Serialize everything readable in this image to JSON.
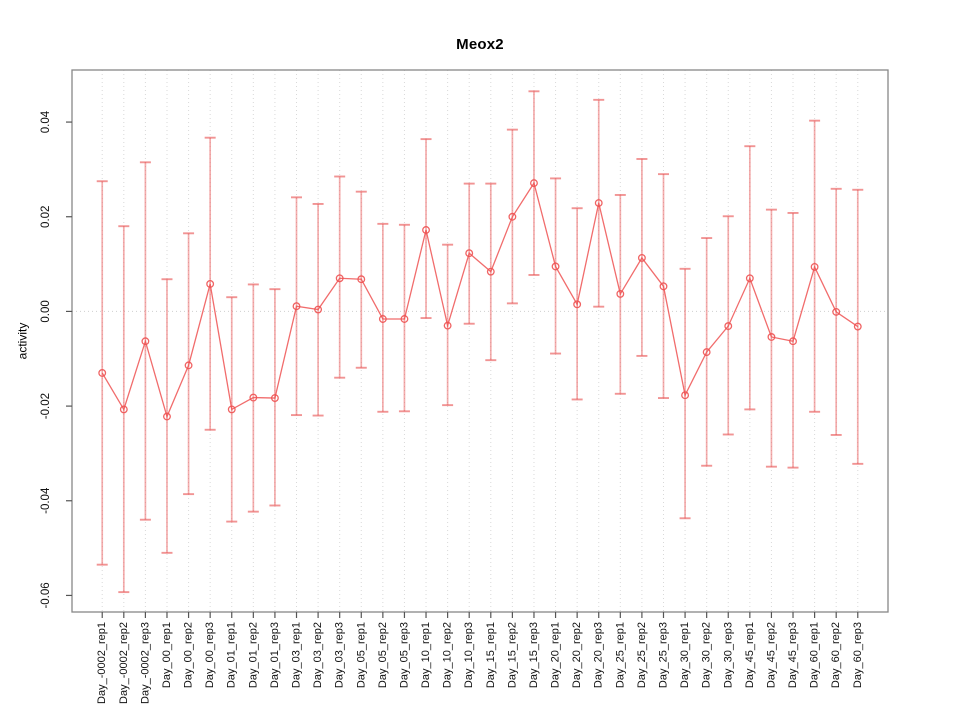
{
  "chart_data": {
    "type": "line",
    "title": "Meox2",
    "xlabel": "",
    "ylabel": "activity",
    "legend_position": "none",
    "grid": "vertical-dotted-per-category-plus-dotted-zero-line",
    "marker": "open-circle",
    "categories": [
      "Day_-0002_rep1",
      "Day_-0002_rep2",
      "Day_-0002_rep3",
      "Day_00_rep1",
      "Day_00_rep2",
      "Day_00_rep3",
      "Day_01_rep1",
      "Day_01_rep2",
      "Day_01_rep3",
      "Day_03_rep1",
      "Day_03_rep2",
      "Day_03_rep3",
      "Day_05_rep1",
      "Day_05_rep2",
      "Day_05_rep3",
      "Day_10_rep1",
      "Day_10_rep2",
      "Day_10_rep3",
      "Day_15_rep1",
      "Day_15_rep2",
      "Day_15_rep3",
      "Day_20_rep1",
      "Day_20_rep2",
      "Day_20_rep3",
      "Day_25_rep1",
      "Day_25_rep2",
      "Day_25_rep3",
      "Day_30_rep1",
      "Day_30_rep2",
      "Day_30_rep3",
      "Day_45_rep1",
      "Day_45_rep2",
      "Day_45_rep3",
      "Day_60_rep1",
      "Day_60_rep2",
      "Day_60_rep3"
    ],
    "series": [
      {
        "name": "activity",
        "values": [
          -0.013,
          -0.0207,
          -0.0063,
          -0.0222,
          -0.0114,
          0.0058,
          -0.0207,
          -0.0182,
          -0.0183,
          0.0011,
          0.0004,
          0.007,
          0.0068,
          -0.0016,
          -0.0016,
          0.0172,
          -0.003,
          0.0123,
          0.0084,
          0.02,
          0.0271,
          0.0095,
          0.0015,
          0.0229,
          0.0037,
          0.0113,
          0.0053,
          -0.0177,
          -0.0086,
          -0.0031,
          0.007,
          -0.0054,
          -0.0063,
          0.0094,
          -0.0001,
          -0.0032
        ],
        "error_low": [
          -0.0535,
          -0.0593,
          -0.044,
          -0.051,
          -0.0386,
          -0.025,
          -0.0444,
          -0.0423,
          -0.041,
          -0.0219,
          -0.022,
          -0.014,
          -0.0119,
          -0.0212,
          -0.0211,
          -0.0014,
          -0.0198,
          -0.0026,
          -0.0103,
          0.0017,
          0.0077,
          -0.0089,
          -0.0186,
          0.001,
          -0.0174,
          -0.0094,
          -0.0183,
          -0.0437,
          -0.0326,
          -0.026,
          -0.0207,
          -0.0328,
          -0.033,
          -0.0212,
          -0.0261,
          -0.0322
        ],
        "error_high": [
          0.0275,
          0.018,
          0.0315,
          0.0068,
          0.0165,
          0.0367,
          0.003,
          0.0057,
          0.0047,
          0.0241,
          0.0227,
          0.0285,
          0.0253,
          0.0185,
          0.0183,
          0.0364,
          0.0141,
          0.027,
          0.027,
          0.0384,
          0.0465,
          0.0281,
          0.0218,
          0.0447,
          0.0246,
          0.0322,
          0.029,
          0.009,
          0.0155,
          0.0201,
          0.0349,
          0.0215,
          0.0208,
          0.0403,
          0.0259,
          0.0257
        ]
      }
    ],
    "yticks": [
      {
        "v": 0.04,
        "label": "0.04"
      },
      {
        "v": 0.02,
        "label": "0.02"
      },
      {
        "v": 0.0,
        "label": "0.00"
      },
      {
        "v": -0.02,
        "label": "-0.02"
      },
      {
        "v": -0.04,
        "label": "-0.04"
      },
      {
        "v": -0.06,
        "label": "-0.06"
      }
    ],
    "ylim": [
      -0.0635,
      0.051
    ],
    "colors": {
      "series": "#ee5252",
      "errorbar": "#ea5a5a",
      "grid": "#d9d9d9",
      "zero_line": "#cfcfcf",
      "box": "#878787",
      "tick": "#555555",
      "text": "#111111",
      "background": "#ffffff"
    }
  }
}
